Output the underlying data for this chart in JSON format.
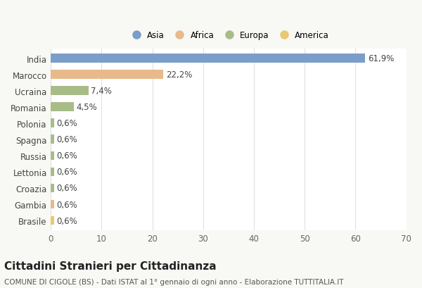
{
  "categories": [
    "India",
    "Marocco",
    "Ucraina",
    "Romania",
    "Polonia",
    "Spagna",
    "Russia",
    "Lettonia",
    "Croazia",
    "Gambia",
    "Brasile"
  ],
  "values": [
    61.9,
    22.2,
    7.4,
    4.5,
    0.6,
    0.6,
    0.6,
    0.6,
    0.6,
    0.6,
    0.6
  ],
  "labels": [
    "61,9%",
    "22,2%",
    "7,4%",
    "4,5%",
    "0,6%",
    "0,6%",
    "0,6%",
    "0,6%",
    "0,6%",
    "0,6%",
    "0,6%"
  ],
  "colors": [
    "#7b9ec9",
    "#e8b98a",
    "#a8bc88",
    "#a8bc88",
    "#a8bc88",
    "#a8bc88",
    "#a8bc88",
    "#a8bc88",
    "#a8bc88",
    "#e8b98a",
    "#e8c870"
  ],
  "legend_labels": [
    "Asia",
    "Africa",
    "Europa",
    "America"
  ],
  "legend_colors": [
    "#7b9ec9",
    "#e8b98a",
    "#a8bc88",
    "#e8c870"
  ],
  "xlim": [
    0,
    70
  ],
  "xticks": [
    0,
    10,
    20,
    30,
    40,
    50,
    60,
    70
  ],
  "title": "Cittadini Stranieri per Cittadinanza",
  "subtitle": "COMUNE DI CIGOLE (BS) - Dati ISTAT al 1° gennaio di ogni anno - Elaborazione TUTTITALIA.IT",
  "background_color": "#f8f8f5",
  "plot_background": "#ffffff",
  "bar_height": 0.55,
  "label_fontsize": 8.5,
  "title_fontsize": 11,
  "subtitle_fontsize": 7.5
}
